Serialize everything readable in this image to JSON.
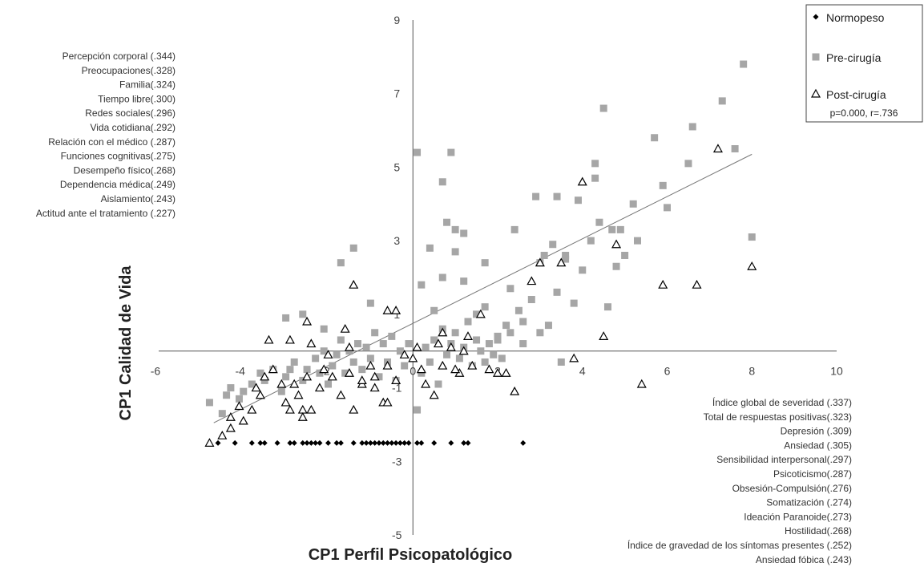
{
  "chart_data": {
    "type": "scatter",
    "xlabel": "CP1  Perfil Psicopatológico",
    "ylabel": "CP1  Calidad de Vida",
    "xlim": [
      -6,
      10
    ],
    "ylim": [
      -5,
      9
    ],
    "x_ticks": [
      -6,
      -4,
      -2,
      0,
      2,
      4,
      6,
      8,
      10
    ],
    "y_ticks": [
      -5,
      -3,
      -1,
      1,
      3,
      5,
      7,
      9
    ],
    "grid": false,
    "legend_position": "top-right",
    "legend_note": "p=0.000, r=.736",
    "trendline": {
      "x": [
        -4.7,
        8.0
      ],
      "y": [
        -1.95,
        5.35
      ]
    },
    "y_annotations": [
      "Percepción corporal (.344)",
      "Preocupaciones(.328)",
      "Familia(.324)",
      "Tiempo libre(.300)",
      "Redes sociales(.296)",
      "Vida cotidiana(.292)",
      "Relación con el médico (.287)",
      "Funciones cognitivas(.275)",
      "Desempeño físico(.268)",
      "Dependencia médica(.249)",
      "Aislamiento(.243)",
      "Actitud ante el tratamiento (.227)"
    ],
    "x_annotations": [
      "Índice global de severidad (.337)",
      "Total de respuestas positivas(.323)",
      "Depresión (.309)",
      "Ansiedad (.305)",
      "Sensibilidad interpersonal(.297)",
      "Psicoticismo(.287)",
      "Obsesión-Compulsión(.276)",
      "Somatización (.274)",
      "Ideación Paranoide(.273)",
      "Hostilidad(.268)",
      "Índice de gravedad de los síntomas presentes (.252)",
      "Ansiedad fóbica (.243)"
    ],
    "series": [
      {
        "name": "Normopeso",
        "marker": "diamond",
        "color": "#000000",
        "points": [
          [
            -4.6,
            -2.5
          ],
          [
            -4.2,
            -2.5
          ],
          [
            -3.8,
            -2.5
          ],
          [
            -3.6,
            -2.5
          ],
          [
            -3.5,
            -2.5
          ],
          [
            -3.2,
            -2.5
          ],
          [
            -2.9,
            -2.5
          ],
          [
            -2.8,
            -2.5
          ],
          [
            -2.6,
            -2.5
          ],
          [
            -2.5,
            -2.5
          ],
          [
            -2.4,
            -2.5
          ],
          [
            -2.3,
            -2.5
          ],
          [
            -2.2,
            -2.5
          ],
          [
            -2.0,
            -2.5
          ],
          [
            -1.8,
            -2.5
          ],
          [
            -1.7,
            -2.5
          ],
          [
            -1.4,
            -2.5
          ],
          [
            -1.2,
            -2.5
          ],
          [
            -1.1,
            -2.5
          ],
          [
            -1.0,
            -2.5
          ],
          [
            -0.9,
            -2.5
          ],
          [
            -0.8,
            -2.5
          ],
          [
            -0.7,
            -2.5
          ],
          [
            -0.5,
            -2.5
          ],
          [
            -0.4,
            -2.5
          ],
          [
            -0.3,
            -2.5
          ],
          [
            -0.1,
            -2.5
          ],
          [
            -0.2,
            -2.5
          ],
          [
            0.2,
            -2.5
          ],
          [
            0.5,
            -2.5
          ],
          [
            0.9,
            -2.5
          ],
          [
            0.1,
            -2.5
          ],
          [
            1.2,
            -2.5
          ],
          [
            1.3,
            -2.5
          ],
          [
            2.6,
            -2.5
          ],
          [
            -0.6,
            -2.5
          ]
        ]
      },
      {
        "name": "Pre-cirugía",
        "marker": "square",
        "color": "#a6a6a6",
        "points": [
          [
            -4.8,
            -1.4
          ],
          [
            -4.5,
            -1.7
          ],
          [
            -4.4,
            -1.2
          ],
          [
            -4.3,
            -1.0
          ],
          [
            -4.1,
            -1.3
          ],
          [
            -4.0,
            -1.1
          ],
          [
            -3.8,
            -0.9
          ],
          [
            -3.6,
            -0.6
          ],
          [
            -3.5,
            -0.8
          ],
          [
            -3.3,
            -0.5
          ],
          [
            -3.1,
            -1.1
          ],
          [
            -3.0,
            -0.7
          ],
          [
            -2.9,
            -0.5
          ],
          [
            -2.8,
            -0.3
          ],
          [
            -2.6,
            -0.8
          ],
          [
            -2.5,
            -0.5
          ],
          [
            -2.3,
            -0.2
          ],
          [
            -2.2,
            -0.6
          ],
          [
            -2.1,
            0.0
          ],
          [
            -2.0,
            -0.9
          ],
          [
            -1.9,
            -0.4
          ],
          [
            -1.8,
            -0.1
          ],
          [
            -1.7,
            0.3
          ],
          [
            -1.6,
            -0.6
          ],
          [
            -1.5,
            0.0
          ],
          [
            -1.4,
            -0.3
          ],
          [
            -1.3,
            0.2
          ],
          [
            -1.2,
            -0.5
          ],
          [
            -1.1,
            0.1
          ],
          [
            -1.0,
            -0.2
          ],
          [
            -0.9,
            0.5
          ],
          [
            -0.8,
            -0.7
          ],
          [
            -0.7,
            0.2
          ],
          [
            -0.6,
            -0.3
          ],
          [
            -0.5,
            0.4
          ],
          [
            -0.4,
            -0.8
          ],
          [
            -0.3,
            0.0
          ],
          [
            -0.2,
            -0.4
          ],
          [
            -0.1,
            0.2
          ],
          [
            0.1,
            -1.6
          ],
          [
            0.2,
            -0.6
          ],
          [
            0.3,
            0.1
          ],
          [
            0.4,
            -0.3
          ],
          [
            0.5,
            0.3
          ],
          [
            0.6,
            -0.9
          ],
          [
            0.7,
            0.6
          ],
          [
            0.8,
            -0.1
          ],
          [
            0.9,
            0.2
          ],
          [
            1.0,
            0.5
          ],
          [
            1.1,
            -0.2
          ],
          [
            1.2,
            0.1
          ],
          [
            1.3,
            0.8
          ],
          [
            1.4,
            -0.4
          ],
          [
            1.5,
            0.3
          ],
          [
            1.6,
            0.0
          ],
          [
            1.7,
            -0.3
          ],
          [
            1.8,
            0.2
          ],
          [
            1.9,
            -0.1
          ],
          [
            2.0,
            0.4
          ],
          [
            2.1,
            -0.2
          ],
          [
            2.2,
            0.7
          ],
          [
            2.3,
            0.5
          ],
          [
            2.5,
            1.1
          ],
          [
            2.6,
            0.2
          ],
          [
            2.8,
            1.4
          ],
          [
            3.0,
            2.4
          ],
          [
            3.2,
            0.7
          ],
          [
            3.4,
            1.6
          ],
          [
            3.5,
            -0.3
          ],
          [
            3.6,
            2.5
          ],
          [
            3.8,
            1.3
          ],
          [
            4.0,
            2.2
          ],
          [
            4.2,
            3.0
          ],
          [
            4.4,
            3.5
          ],
          [
            4.6,
            1.2
          ],
          [
            4.8,
            2.3
          ],
          [
            5.0,
            2.6
          ],
          [
            5.2,
            4.0
          ],
          [
            5.7,
            5.8
          ],
          [
            5.9,
            4.5
          ],
          [
            6.0,
            3.9
          ],
          [
            6.5,
            5.1
          ],
          [
            6.6,
            6.1
          ],
          [
            7.3,
            6.8
          ],
          [
            7.6,
            5.5
          ],
          [
            7.8,
            7.8
          ],
          [
            8.0,
            3.1
          ],
          [
            4.5,
            6.6
          ],
          [
            4.3,
            4.7
          ],
          [
            4.3,
            5.1
          ],
          [
            2.9,
            4.2
          ],
          [
            3.4,
            4.2
          ],
          [
            3.9,
            4.1
          ],
          [
            0.1,
            5.4
          ],
          [
            0.2,
            1.8
          ],
          [
            0.4,
            2.8
          ],
          [
            0.7,
            4.6
          ],
          [
            0.9,
            5.4
          ],
          [
            1.2,
            3.2
          ],
          [
            1.7,
            2.4
          ],
          [
            2.4,
            3.3
          ],
          [
            0.8,
            3.5
          ],
          [
            -1.4,
            2.8
          ],
          [
            -1.7,
            2.4
          ],
          [
            -3.0,
            0.9
          ],
          [
            -2.6,
            1.0
          ],
          [
            -2.1,
            0.6
          ],
          [
            -1.0,
            1.3
          ],
          [
            0.7,
            2.0
          ],
          [
            1.0,
            2.7
          ],
          [
            1.2,
            1.9
          ],
          [
            1.7,
            1.2
          ],
          [
            2.3,
            1.7
          ],
          [
            3.1,
            2.6
          ],
          [
            3.3,
            2.9
          ],
          [
            3.6,
            2.6
          ],
          [
            4.7,
            3.3
          ],
          [
            5.3,
            3.0
          ],
          [
            4.9,
            3.3
          ],
          [
            1.0,
            3.3
          ],
          [
            2.0,
            0.3
          ],
          [
            2.6,
            0.8
          ],
          [
            3.0,
            0.5
          ],
          [
            1.5,
            1.0
          ],
          [
            0.5,
            1.1
          ]
        ]
      },
      {
        "name": "Post-cirugía",
        "marker": "triangle",
        "color": "#000000",
        "points": [
          [
            -4.8,
            -2.5
          ],
          [
            -4.5,
            -2.3
          ],
          [
            -4.3,
            -1.8
          ],
          [
            -4.1,
            -1.5
          ],
          [
            -4.0,
            -1.9
          ],
          [
            -3.7,
            -1.0
          ],
          [
            -3.5,
            -0.7
          ],
          [
            -3.3,
            -0.5
          ],
          [
            -3.1,
            -0.9
          ],
          [
            -3.0,
            -1.4
          ],
          [
            -2.9,
            -1.6
          ],
          [
            -2.7,
            -1.2
          ],
          [
            -2.5,
            -0.7
          ],
          [
            -2.4,
            -1.6
          ],
          [
            -2.2,
            -1.0
          ],
          [
            -2.1,
            -0.5
          ],
          [
            -1.9,
            -0.7
          ],
          [
            -1.7,
            -1.2
          ],
          [
            -1.5,
            -0.6
          ],
          [
            -1.4,
            -1.6
          ],
          [
            -1.2,
            -0.9
          ],
          [
            -1.0,
            -0.4
          ],
          [
            -0.9,
            -1.0
          ],
          [
            -0.7,
            -1.4
          ],
          [
            -0.6,
            -0.4
          ],
          [
            -0.4,
            -0.8
          ],
          [
            -0.2,
            -0.1
          ],
          [
            0.0,
            -0.2
          ],
          [
            0.3,
            -0.9
          ],
          [
            0.5,
            -1.2
          ],
          [
            0.7,
            -0.4
          ],
          [
            0.9,
            0.1
          ],
          [
            1.1,
            -0.6
          ],
          [
            1.2,
            0.0
          ],
          [
            1.4,
            -0.4
          ],
          [
            1.6,
            1.0
          ],
          [
            1.8,
            -0.5
          ],
          [
            2.0,
            -0.6
          ],
          [
            2.2,
            -0.6
          ],
          [
            2.4,
            -1.1
          ],
          [
            2.8,
            1.9
          ],
          [
            3.0,
            2.4
          ],
          [
            3.5,
            2.4
          ],
          [
            3.8,
            -0.2
          ],
          [
            4.0,
            4.6
          ],
          [
            4.5,
            0.4
          ],
          [
            4.8,
            2.9
          ],
          [
            5.4,
            -0.9
          ],
          [
            5.9,
            1.8
          ],
          [
            6.7,
            1.8
          ],
          [
            7.2,
            5.5
          ],
          [
            8.0,
            2.3
          ],
          [
            -1.4,
            1.8
          ],
          [
            -2.5,
            0.8
          ],
          [
            -3.4,
            0.3
          ],
          [
            -2.9,
            0.3
          ],
          [
            -2.4,
            0.2
          ],
          [
            -2.0,
            -0.1
          ],
          [
            -1.6,
            0.6
          ],
          [
            -1.5,
            0.1
          ],
          [
            -0.6,
            1.1
          ],
          [
            -0.4,
            1.1
          ],
          [
            0.6,
            0.2
          ],
          [
            1.0,
            -0.5
          ],
          [
            0.2,
            -0.5
          ],
          [
            -3.6,
            -1.2
          ],
          [
            -3.8,
            -1.6
          ],
          [
            -2.6,
            -1.6
          ],
          [
            -0.9,
            -0.7
          ],
          [
            1.3,
            0.4
          ],
          [
            0.1,
            0.1
          ],
          [
            -2.8,
            -0.9
          ],
          [
            -1.2,
            -0.8
          ],
          [
            -4.3,
            -2.1
          ],
          [
            -0.6,
            -1.4
          ],
          [
            -2.6,
            -1.8
          ],
          [
            0.7,
            0.5
          ]
        ]
      }
    ]
  }
}
